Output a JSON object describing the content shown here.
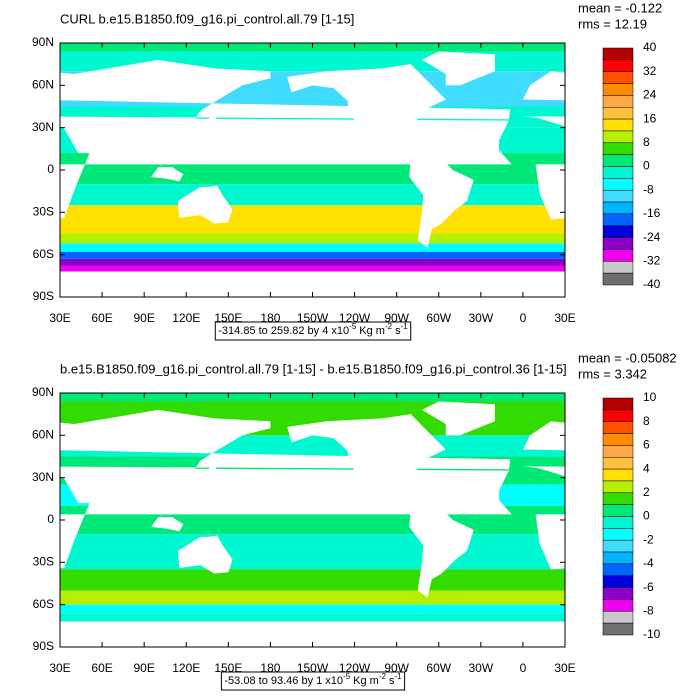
{
  "panels": [
    {
      "title": "CURL b.e15.B1850.f09_g16.pi_control.all.79 [1-15]",
      "mean": "mean = -0.122",
      "rms": "rms = 12.19",
      "range": [
        "-314.85 to 259.82 by 4 x10",
        "-5",
        "Kg m",
        "-2",
        "s",
        "-1"
      ],
      "colorbar_labels": [
        40,
        32,
        24,
        16,
        8,
        0,
        -8,
        -16,
        -24,
        -32,
        -40
      ]
    },
    {
      "title": "b.e15.B1850.f09_g16.pi_control.all.79 [1-15] - b.e15.B1850.f09_g16.pi_control.36 [1-15]",
      "mean": "mean = -0.05082",
      "rms": "rms = 3.342",
      "range": [
        "-53.08 to 93.46 by 1 x10",
        "-5",
        "Kg m",
        "-2",
        "s",
        "-1"
      ],
      "colorbar_labels": [
        10,
        8,
        6,
        4,
        2,
        0,
        -2,
        -4,
        -6,
        -8,
        -10
      ]
    }
  ],
  "lat_labels": [
    "90N",
    "60N",
    "30N",
    "0",
    "30S",
    "60S",
    "90S"
  ],
  "lon_labels": [
    "30E",
    "60E",
    "90E",
    "120E",
    "150E",
    "180",
    "150W",
    "120W",
    "90W",
    "60W",
    "30W",
    "0",
    "30E"
  ],
  "colorbar_colors": [
    "#b40000",
    "#ff0000",
    "#ff5000",
    "#ff8c00",
    "#ffa848",
    "#ffc040",
    "#ffe000",
    "#b4f000",
    "#32dc00",
    "#00e878",
    "#00f8d0",
    "#00ffff",
    "#40dcff",
    "#00b4ff",
    "#0064ff",
    "#0000dc",
    "#8c00c8",
    "#f000f0",
    "#c8c8c8",
    "#6e6e6e"
  ]
}
